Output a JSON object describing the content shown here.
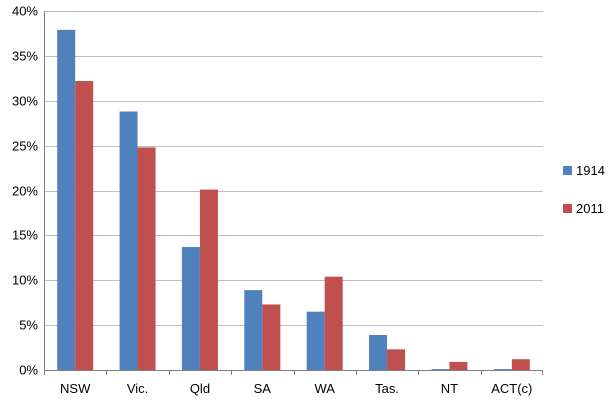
{
  "chart_data": {
    "type": "bar",
    "title": "",
    "xlabel": "",
    "ylabel": "",
    "categories": [
      "NSW",
      "Vic.",
      "Qld",
      "SA",
      "WA",
      "Tas.",
      "NT",
      "ACT(c)"
    ],
    "series": [
      {
        "name": "1914",
        "color": "#4f81bd",
        "values": [
          37.9,
          28.8,
          13.7,
          8.9,
          6.5,
          3.9,
          0.1,
          0.1
        ]
      },
      {
        "name": "2011",
        "color": "#c0504d",
        "values": [
          32.2,
          24.8,
          20.1,
          7.3,
          10.4,
          2.3,
          0.9,
          1.2
        ]
      }
    ],
    "ylim": [
      0,
      40
    ],
    "yticks": [
      0,
      5,
      10,
      15,
      20,
      25,
      30,
      35,
      40
    ],
    "ytick_labels": [
      "0%",
      "5%",
      "10%",
      "15%",
      "20%",
      "25%",
      "30%",
      "35%",
      "40%"
    ],
    "grid": true,
    "legend_position": "right"
  }
}
